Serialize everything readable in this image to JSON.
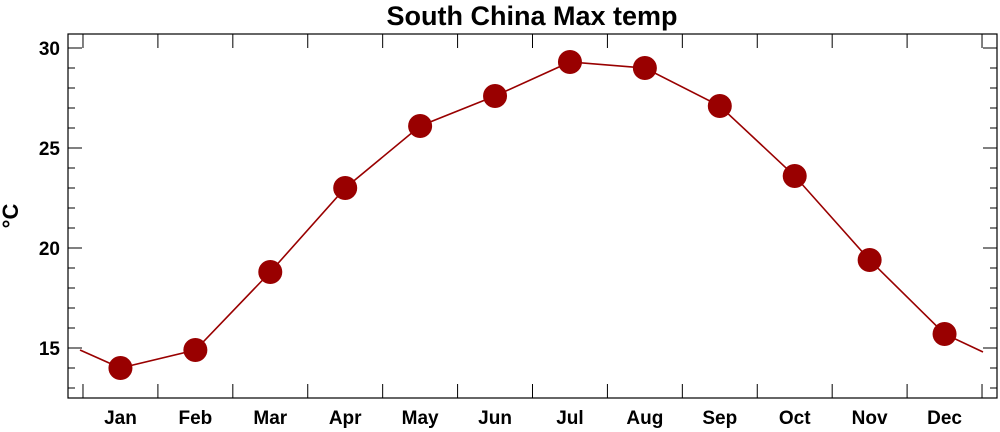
{
  "chart_data": {
    "type": "line",
    "title": "South China Max temp",
    "xlabel": "",
    "ylabel": "°C",
    "categories": [
      "Jan",
      "Feb",
      "Mar",
      "Apr",
      "May",
      "Jun",
      "Jul",
      "Aug",
      "Sep",
      "Oct",
      "Nov",
      "Dec"
    ],
    "series": [
      {
        "values": [
          14.0,
          14.9,
          18.8,
          23.0,
          26.1,
          27.6,
          29.3,
          29.0,
          27.1,
          23.6,
          19.4,
          15.7
        ],
        "color": "#990000"
      }
    ],
    "wrap_left_value": 14.9,
    "wrap_right_value": 14.8,
    "ylim": [
      12.5,
      30.7
    ],
    "yticks": [
      15,
      20,
      25,
      30
    ],
    "yticks_minor": [
      13,
      14,
      16,
      17,
      18,
      19,
      21,
      22,
      23,
      24,
      26,
      27,
      28,
      29
    ],
    "grid": false,
    "legend": "none",
    "colors": {
      "marker": "#990000",
      "line": "#990000",
      "axes": "#000000"
    }
  }
}
